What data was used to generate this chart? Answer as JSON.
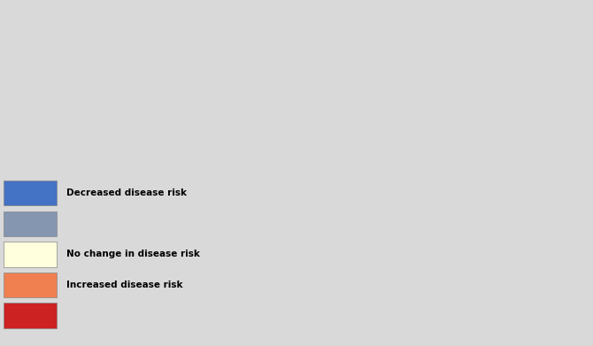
{
  "background_color": "#d9d9d9",
  "legend_items": [
    {
      "color": "#4472c4",
      "label": "Decreased disease risk"
    },
    {
      "color": "#8496b0",
      "label": ""
    },
    {
      "color": "#ffffcc",
      "label": "No change in disease risk"
    },
    {
      "color": "#f4a460",
      "label": "Increased disease risk"
    },
    {
      "color": "#cc2222",
      "label": ""
    }
  ],
  "legend_colors": {
    "blue": "#4472c4",
    "gray": "#8496b0",
    "yellow": "#ffffdd",
    "orange": "#f08050",
    "red": "#cc2222"
  },
  "ocean_color": "#d9d9d9",
  "land_base_color": "#8496b0",
  "increased_color": "#f08050",
  "decreased_color": "#4472c4",
  "no_change_color": "#ffffcc",
  "red_color": "#cc2222",
  "figsize": [
    6.7,
    3.91
  ],
  "dpi": 100
}
